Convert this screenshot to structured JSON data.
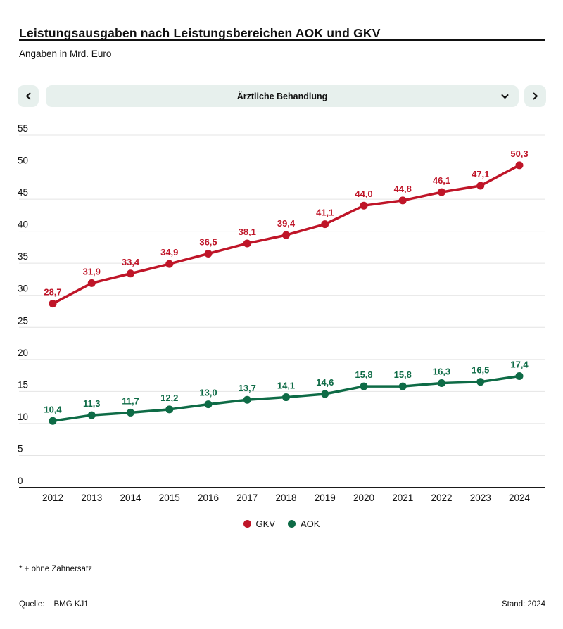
{
  "header": {
    "title": "Leistungsausgaben nach Leistungsbereichen AOK und GKV",
    "subtitle": "Angaben in Mrd. Euro"
  },
  "selector": {
    "value": "Ärztliche Behandlung"
  },
  "chart_data": {
    "type": "line",
    "title": "Leistungsausgaben nach Leistungsbereichen AOK und GKV",
    "units": "Mrd. Euro",
    "selected_category": "Ärztliche Behandlung",
    "x": [
      2012,
      2013,
      2014,
      2015,
      2016,
      2017,
      2018,
      2019,
      2020,
      2021,
      2022,
      2023,
      2024
    ],
    "series": [
      {
        "name": "GKV",
        "color": "#bf1528",
        "values": [
          28.7,
          31.9,
          33.4,
          34.9,
          36.5,
          38.1,
          39.4,
          41.1,
          44.0,
          44.8,
          46.1,
          47.1,
          50.3
        ],
        "labels": [
          "28,7",
          "31,9",
          "33,4",
          "34,9",
          "36,5",
          "38,1",
          "39,4",
          "41,1",
          "44,0",
          "44,8",
          "46,1",
          "47,1",
          "50,3"
        ]
      },
      {
        "name": "AOK",
        "color": "#0e6b46",
        "values": [
          10.4,
          11.3,
          11.7,
          12.2,
          13.0,
          13.7,
          14.1,
          14.6,
          15.8,
          15.8,
          16.3,
          16.5,
          17.4
        ],
        "labels": [
          "10,4",
          "11,3",
          "11,7",
          "12,2",
          "13,0",
          "13,7",
          "14,1",
          "14,6",
          "15,8",
          "15,8",
          "16,3",
          "16,5",
          "17,4"
        ]
      }
    ],
    "ylim": [
      0,
      55
    ],
    "ytick_step": 5,
    "grid": true,
    "legend_position": "bottom"
  },
  "footnote": "* + ohne Zahnersatz",
  "footer": {
    "source_label": "Quelle:",
    "source_value": "BMG KJ1",
    "stand": "Stand: 2024"
  },
  "colors": {
    "control_bg": "#e7f0ed",
    "grid": "#e4e4e4",
    "axis": "#1a1a1a",
    "gkv_red": "#bf1528",
    "aok_green": "#0e6b46"
  }
}
